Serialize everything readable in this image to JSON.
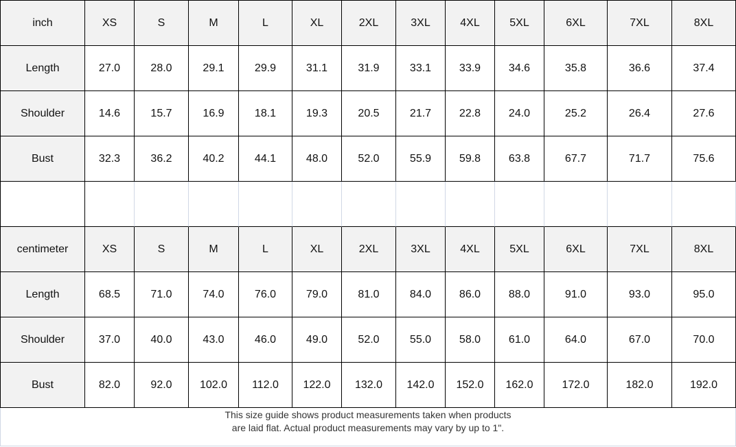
{
  "inch_table": {
    "unit": "inch",
    "sizes": [
      "XS",
      "S",
      "M",
      "L",
      "XL",
      "2XL",
      "3XL",
      "4XL",
      "5XL",
      "6XL",
      "7XL",
      "8XL"
    ],
    "rows": [
      {
        "label": "Length",
        "values": [
          "27.0",
          "28.0",
          "29.1",
          "29.9",
          "31.1",
          "31.9",
          "33.1",
          "33.9",
          "34.6",
          "35.8",
          "36.6",
          "37.4"
        ]
      },
      {
        "label": "Shoulder",
        "values": [
          "14.6",
          "15.7",
          "16.9",
          "18.1",
          "19.3",
          "20.5",
          "21.7",
          "22.8",
          "24.0",
          "25.2",
          "26.4",
          "27.6"
        ]
      },
      {
        "label": "Bust",
        "values": [
          "32.3",
          "36.2",
          "40.2",
          "44.1",
          "48.0",
          "52.0",
          "55.9",
          "59.8",
          "63.8",
          "67.7",
          "71.7",
          "75.6"
        ]
      }
    ]
  },
  "cm_table": {
    "unit": "centimeter",
    "sizes": [
      "XS",
      "S",
      "M",
      "L",
      "XL",
      "2XL",
      "3XL",
      "4XL",
      "5XL",
      "6XL",
      "7XL",
      "8XL"
    ],
    "rows": [
      {
        "label": "Length",
        "values": [
          "68.5",
          "71.0",
          "74.0",
          "76.0",
          "79.0",
          "81.0",
          "84.0",
          "86.0",
          "88.0",
          "91.0",
          "93.0",
          "95.0"
        ]
      },
      {
        "label": "Shoulder",
        "values": [
          "37.0",
          "40.0",
          "43.0",
          "46.0",
          "49.0",
          "52.0",
          "55.0",
          "58.0",
          "61.0",
          "64.0",
          "67.0",
          "70.0"
        ]
      },
      {
        "label": "Bust",
        "values": [
          "82.0",
          "92.0",
          "102.0",
          "112.0",
          "122.0",
          "132.0",
          "142.0",
          "152.0",
          "162.0",
          "172.0",
          "182.0",
          "192.0"
        ]
      }
    ]
  },
  "note": {
    "line1": "This size guide shows product measurements taken when products",
    "line2": "are laid flat. Actual product measurements may vary by up to 1\"."
  }
}
